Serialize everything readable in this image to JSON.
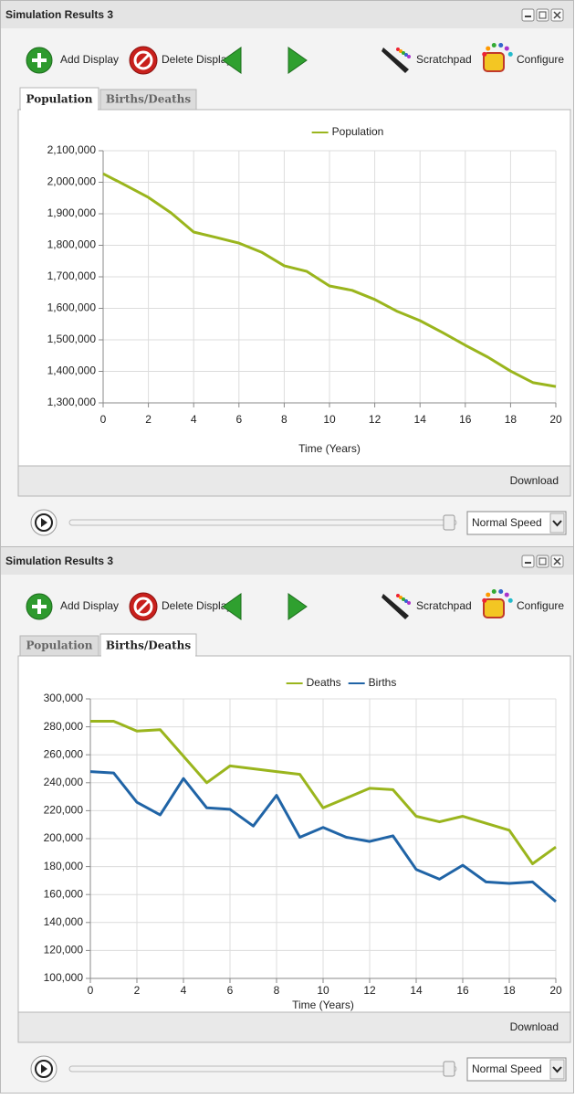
{
  "panels": [
    {
      "title": "Simulation Results 3",
      "toolbar": [
        "Add Display",
        "Delete Display",
        "Scratchpad",
        "Configure"
      ],
      "tabs": [
        "Population",
        "Births/Deaths"
      ],
      "active_tab": 0,
      "chart": {
        "type": "line",
        "xlabel": "Time (Years)",
        "x": [
          0,
          1,
          2,
          3,
          4,
          5,
          6,
          7,
          8,
          9,
          10,
          11,
          12,
          13,
          14,
          15,
          16,
          17,
          18,
          19,
          20
        ],
        "xlim": [
          0,
          20
        ],
        "xticks": [
          0,
          2,
          4,
          6,
          8,
          10,
          12,
          14,
          16,
          18,
          20
        ],
        "ylim": [
          1300000,
          2100000
        ],
        "yticks": [
          {
            "value": 1300000,
            "label": "1,300,000"
          },
          {
            "value": 1400000,
            "label": "1,400,000"
          },
          {
            "value": 1500000,
            "label": "1,500,000"
          },
          {
            "value": 1600000,
            "label": "1,600,000"
          },
          {
            "value": 1700000,
            "label": "1,700,000"
          },
          {
            "value": 1800000,
            "label": "1,800,000"
          },
          {
            "value": 1900000,
            "label": "1,900,000"
          },
          {
            "value": 2000000,
            "label": "2,000,000"
          },
          {
            "value": 2100000,
            "label": "2,100,000"
          }
        ],
        "grid": true,
        "series": [
          {
            "name": "Population",
            "color": "#9ab51d",
            "values": [
              2027000,
              1990000,
              1952000,
              1903000,
              1842000,
              1825000,
              1807000,
              1778000,
              1735000,
              1717000,
              1671000,
              1657000,
              1628000,
              1590000,
              1561000,
              1523000,
              1483000,
              1445000,
              1401000,
              1364000,
              1352000
            ]
          }
        ]
      },
      "download": "Download",
      "speed": "Normal Speed"
    },
    {
      "title": "Simulation Results 3",
      "toolbar": [
        "Add Display",
        "Delete Display",
        "Scratchpad",
        "Configure"
      ],
      "tabs": [
        "Population",
        "Births/Deaths"
      ],
      "active_tab": 1,
      "chart": {
        "type": "line",
        "xlabel": "Time (Years)",
        "x": [
          0,
          1,
          2,
          3,
          4,
          5,
          6,
          7,
          8,
          9,
          10,
          11,
          12,
          13,
          14,
          15,
          16,
          17,
          18,
          19,
          20
        ],
        "xlim": [
          0,
          20
        ],
        "xticks": [
          0,
          2,
          4,
          6,
          8,
          10,
          12,
          14,
          16,
          18,
          20
        ],
        "ylim": [
          100000,
          300000
        ],
        "yticks": [
          {
            "value": 100000,
            "label": "100,000"
          },
          {
            "value": 120000,
            "label": "120,000"
          },
          {
            "value": 140000,
            "label": "140,000"
          },
          {
            "value": 160000,
            "label": "160,000"
          },
          {
            "value": 180000,
            "label": "180,000"
          },
          {
            "value": 200000,
            "label": "200,000"
          },
          {
            "value": 220000,
            "label": "220,000"
          },
          {
            "value": 240000,
            "label": "240,000"
          },
          {
            "value": 260000,
            "label": "260,000"
          },
          {
            "value": 280000,
            "label": "280,000"
          },
          {
            "value": 300000,
            "label": "300,000"
          }
        ],
        "grid": true,
        "series": [
          {
            "name": "Deaths",
            "color": "#9ab51d",
            "values": [
              284000,
              284000,
              277000,
              278000,
              259000,
              240000,
              252000,
              250000,
              248000,
              246000,
              222000,
              229000,
              236000,
              235000,
              216000,
              212000,
              216000,
              211000,
              206000,
              182000,
              194000
            ]
          },
          {
            "name": "Births",
            "color": "#2064a6",
            "values": [
              248000,
              247000,
              226000,
              217000,
              243000,
              222000,
              221000,
              209000,
              231000,
              201000,
              208000,
              201000,
              198000,
              202000,
              178000,
              171000,
              181000,
              169000,
              168000,
              169000,
              155000
            ]
          }
        ]
      },
      "download": "Download",
      "speed": "Normal Speed"
    }
  ]
}
